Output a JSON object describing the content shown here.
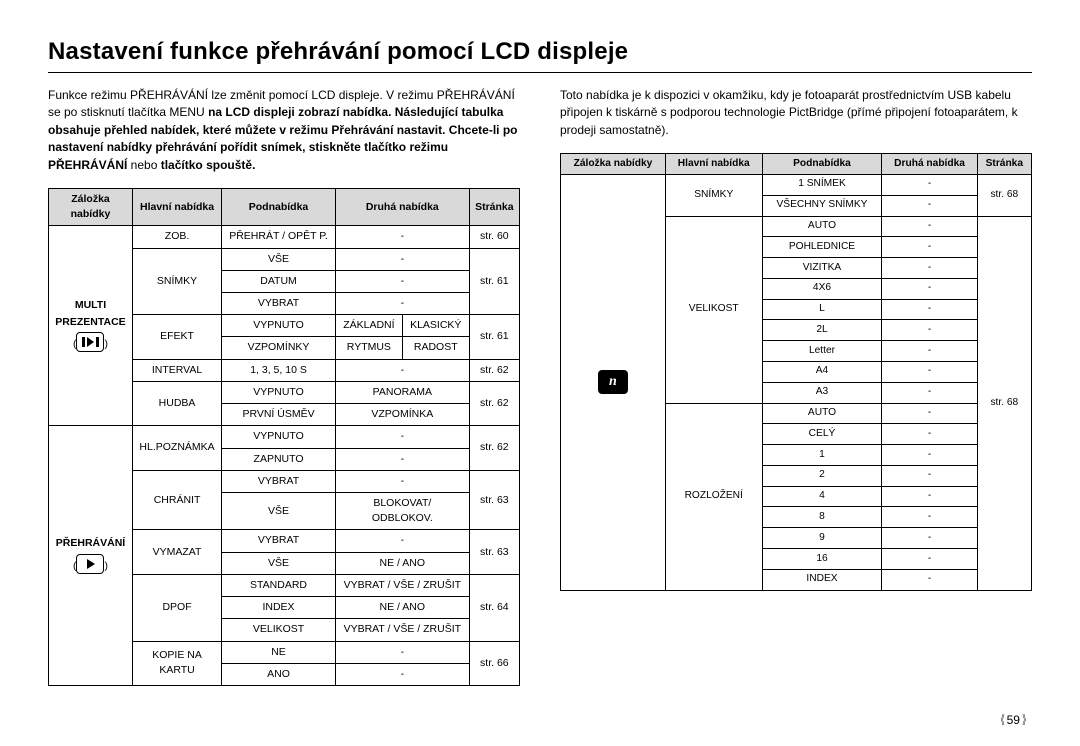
{
  "title": "Nastavení funkce přehrávání pomocí LCD displeje",
  "page_number": "59",
  "intro_left_plain_1": "Funkce režimu PŘEHRÁVÁNÍ lze změnit pomocí LCD displeje.  V režimu PŘEHRÁVÁNÍ se po stisknutí tlačítka MENU ",
  "intro_left_bold_1": "na LCD displeji zobrazí nabídka. Následující tabulka obsahuje přehled nabídek, které můžete v režimu Přehrávání nastavit.  Chcete-li po nastavení nabídky přehrávání pořídit snímek, stiskněte tlačítko režimu PŘEHRÁVÁNÍ",
  "intro_left_plain_2": " nebo ",
  "intro_left_bold_2": "tlačítko spouště.",
  "intro_right": "Toto nabídka je k dispozici v okamžiku, kdy je fotoaparát prostřednictvím USB kabelu připojen k tiskárně s podporou technologie PictBridge (přímé připojení fotoaparátem, k prodeji samostatně).",
  "headers": {
    "tab": "Záložka nabídky",
    "tab_multiline_1": "Záložka",
    "tab_multiline_2": "nabídky",
    "main": "Hlavní nabídka",
    "sub": "Podnabídka",
    "second": "Druhá nabídka",
    "page": "Stránka"
  },
  "colors": {
    "header_bg": "#d9d9d9",
    "border": "#000000",
    "text": "#000000",
    "bg": "#ffffff"
  },
  "t1": {
    "tab1_line1": "MULTI",
    "tab1_line2": "PREZENTACE",
    "tab2": "PŘEHRÁVÁNÍ",
    "rows": {
      "zob": "ZOB.",
      "zob_sub": "PŘEHRÁT / OPĚT P.",
      "zob_pg": "str. 60",
      "snimky": "SNÍMKY",
      "vse": "VŠE",
      "datum": "DATUM",
      "vybrat": "VYBRAT",
      "snimky_pg": "str. 61",
      "efekt": "EFEKT",
      "vypnuto": "VYPNUTO",
      "zakladni": "ZÁKLADNÍ",
      "klasicky": "KLASICKÝ",
      "vzpominky": "VZPOMÍNKY",
      "rytmus": "RYTMUS",
      "radost": "RADOST",
      "efekt_pg": "str. 61",
      "interval": "INTERVAL",
      "interval_sub": "1, 3, 5, 10 S",
      "interval_pg": "str. 62",
      "hudba": "HUDBA",
      "panorama": "PANORAMA",
      "prvni_usmev": "PRVNÍ ÚSMĚV",
      "vzpominka": "VZPOMÍNKA",
      "hudba_pg": "str. 62",
      "hlpoznamka": "HL.POZNÁMKA",
      "zapnuto": "ZAPNUTO",
      "hlp_pg": "str. 62",
      "chranit": "CHRÁNIT",
      "blokovat_odblok": "BLOKOVAT/\nODBLOKOV.",
      "chranit_pg": "str. 63",
      "vymazat": "VYMAZAT",
      "neano": "NE / ANO",
      "vymazat_pg": "str. 63",
      "dpof": "DPOF",
      "standard": "STANDARD",
      "vvz": "VYBRAT / VŠE / ZRUŠIT",
      "index": "INDEX",
      "velikost": "VELIKOST",
      "dpof_pg": "str. 64",
      "kopie": "KOPIE NA KARTU",
      "kopie_l1": "KOPIE NA",
      "kopie_l2": "KARTU",
      "ne": "NE",
      "ano": "ANO",
      "kopie_pg": "str. 66"
    }
  },
  "t2": {
    "pict_glyph": "n",
    "rows": {
      "snimky": "SNÍMKY",
      "snimek1": "1 SNÍMEK",
      "vsechny": "VŠECHNY SNÍMKY",
      "snimky_pg": "str. 68",
      "velikost": "VELIKOST",
      "auto": "AUTO",
      "pohlednice": "POHLEDNICE",
      "vizitka": "VIZITKA",
      "fourx6": "4X6",
      "L": "L",
      "twoL": "2L",
      "letter": "Letter",
      "a4": "A4",
      "a3": "A3",
      "rozlozeni": "ROZLOŽENÍ",
      "cely": "CELÝ",
      "r1": "1",
      "r2": "2",
      "r4": "4",
      "r8": "8",
      "r9": "9",
      "r16": "16",
      "index": "INDEX",
      "big_pg": "str. 68"
    }
  }
}
